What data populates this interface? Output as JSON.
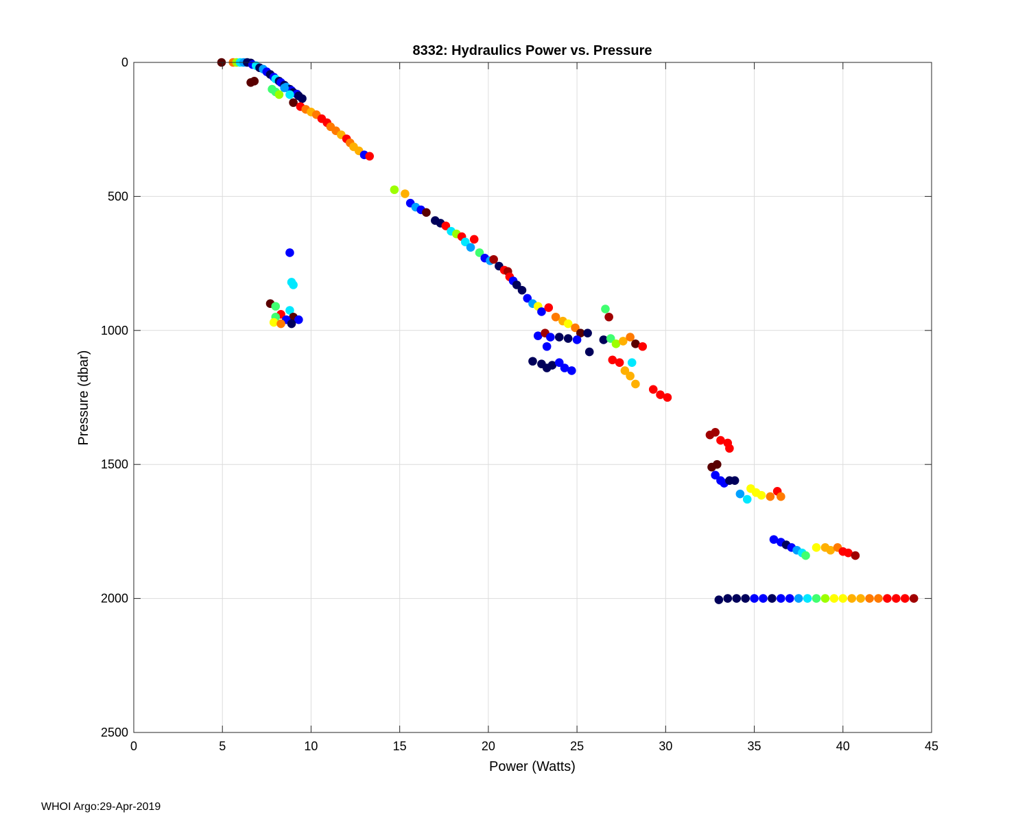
{
  "chart_data": {
    "type": "scatter",
    "title": "8332: Hydraulics Power vs. Pressure",
    "xlabel": "Power (Watts)",
    "ylabel": "Pressure (dbar)",
    "xlim": [
      0,
      45
    ],
    "ylim": [
      0,
      2500
    ],
    "y_reversed": true,
    "grid": true,
    "xticks": [
      0,
      5,
      10,
      15,
      20,
      25,
      30,
      35,
      40,
      45
    ],
    "yticks": [
      0,
      500,
      1000,
      1500,
      2000,
      2500
    ],
    "colormap": [
      "#5a0000",
      "#a00000",
      "#ff0000",
      "#ff7a00",
      "#ffb000",
      "#ffff00",
      "#9cff00",
      "#40ff70",
      "#00e8ff",
      "#00a0ff",
      "#0000ff",
      "#00005a"
    ],
    "points": [
      [
        4.95,
        0,
        0
      ],
      [
        5.6,
        0,
        3
      ],
      [
        5.8,
        0,
        6
      ],
      [
        6.0,
        0,
        8
      ],
      [
        6.2,
        0,
        9
      ],
      [
        6.4,
        0,
        11
      ],
      [
        6.6,
        2,
        11
      ],
      [
        6.7,
        8,
        10
      ],
      [
        6.9,
        12,
        8
      ],
      [
        7.1,
        20,
        11
      ],
      [
        7.3,
        25,
        9
      ],
      [
        7.5,
        35,
        10
      ],
      [
        7.7,
        45,
        11
      ],
      [
        7.9,
        55,
        10
      ],
      [
        8.0,
        62,
        8
      ],
      [
        8.2,
        70,
        11
      ],
      [
        8.3,
        75,
        10
      ],
      [
        8.5,
        85,
        11
      ],
      [
        8.6,
        92,
        9
      ],
      [
        8.8,
        100,
        11
      ],
      [
        8.9,
        105,
        10
      ],
      [
        9.0,
        112,
        11
      ],
      [
        9.2,
        118,
        10
      ],
      [
        9.3,
        125,
        11
      ],
      [
        9.5,
        135,
        11
      ],
      [
        6.6,
        75,
        0
      ],
      [
        6.8,
        70,
        0
      ],
      [
        7.8,
        100,
        7
      ],
      [
        8.0,
        110,
        7
      ],
      [
        8.2,
        120,
        6
      ],
      [
        8.5,
        95,
        9
      ],
      [
        8.8,
        120,
        8
      ],
      [
        9.0,
        150,
        0
      ],
      [
        9.4,
        165,
        2
      ],
      [
        9.7,
        175,
        3
      ],
      [
        10.0,
        185,
        4
      ],
      [
        10.3,
        195,
        3
      ],
      [
        10.6,
        210,
        2
      ],
      [
        10.9,
        225,
        2
      ],
      [
        11.1,
        240,
        3
      ],
      [
        11.4,
        255,
        3
      ],
      [
        11.7,
        270,
        4
      ],
      [
        12.0,
        285,
        2
      ],
      [
        12.2,
        300,
        3
      ],
      [
        12.4,
        315,
        4
      ],
      [
        12.7,
        330,
        4
      ],
      [
        13.0,
        345,
        10
      ],
      [
        13.3,
        350,
        2
      ],
      [
        14.7,
        475,
        6
      ],
      [
        15.3,
        490,
        4
      ],
      [
        15.6,
        525,
        10
      ],
      [
        15.9,
        540,
        9
      ],
      [
        16.2,
        550,
        10
      ],
      [
        16.5,
        560,
        0
      ],
      [
        17.0,
        590,
        11
      ],
      [
        17.3,
        600,
        11
      ],
      [
        17.6,
        610,
        2
      ],
      [
        17.9,
        630,
        8
      ],
      [
        18.2,
        640,
        6
      ],
      [
        18.5,
        650,
        2
      ],
      [
        18.7,
        670,
        8
      ],
      [
        19.0,
        690,
        9
      ],
      [
        19.2,
        660,
        2
      ],
      [
        19.5,
        710,
        7
      ],
      [
        19.8,
        730,
        10
      ],
      [
        20.1,
        740,
        9
      ],
      [
        20.3,
        735,
        1
      ],
      [
        20.6,
        760,
        11
      ],
      [
        20.9,
        775,
        2
      ],
      [
        21.1,
        780,
        1
      ],
      [
        21.2,
        800,
        2
      ],
      [
        21.4,
        815,
        10
      ],
      [
        21.6,
        830,
        11
      ],
      [
        21.9,
        850,
        11
      ],
      [
        22.2,
        880,
        10
      ],
      [
        22.5,
        900,
        9
      ],
      [
        22.8,
        910,
        5
      ],
      [
        23.0,
        930,
        10
      ],
      [
        23.4,
        915,
        2
      ],
      [
        23.8,
        950,
        3
      ],
      [
        24.2,
        965,
        4
      ],
      [
        24.5,
        975,
        5
      ],
      [
        24.9,
        990,
        3
      ],
      [
        25.2,
        1010,
        0
      ],
      [
        22.8,
        1020,
        10
      ],
      [
        23.2,
        1010,
        1
      ],
      [
        23.5,
        1025,
        10
      ],
      [
        23.3,
        1060,
        10
      ],
      [
        24.0,
        1025,
        11
      ],
      [
        24.5,
        1030,
        11
      ],
      [
        25.0,
        1035,
        10
      ],
      [
        25.6,
        1010,
        11
      ],
      [
        25.7,
        1080,
        11
      ],
      [
        26.5,
        1035,
        11
      ],
      [
        26.6,
        920,
        7
      ],
      [
        26.8,
        950,
        1
      ],
      [
        26.9,
        1030,
        7
      ],
      [
        27.2,
        1050,
        6
      ],
      [
        27.6,
        1040,
        4
      ],
      [
        28.0,
        1025,
        3
      ],
      [
        28.3,
        1050,
        0
      ],
      [
        28.7,
        1060,
        2
      ],
      [
        28.1,
        1120,
        8
      ],
      [
        22.5,
        1115,
        11
      ],
      [
        23.0,
        1125,
        11
      ],
      [
        23.3,
        1140,
        11
      ],
      [
        23.6,
        1130,
        11
      ],
      [
        24.0,
        1120,
        10
      ],
      [
        24.3,
        1140,
        10
      ],
      [
        24.7,
        1150,
        10
      ],
      [
        27.0,
        1110,
        2
      ],
      [
        27.4,
        1120,
        2
      ],
      [
        27.7,
        1150,
        4
      ],
      [
        28.0,
        1170,
        4
      ],
      [
        28.3,
        1200,
        4
      ],
      [
        29.3,
        1220,
        2
      ],
      [
        29.7,
        1240,
        2
      ],
      [
        30.1,
        1250,
        2
      ],
      [
        8.8,
        710,
        10
      ],
      [
        8.9,
        820,
        8
      ],
      [
        9.0,
        830,
        8
      ],
      [
        7.7,
        900,
        0
      ],
      [
        8.0,
        910,
        7
      ],
      [
        8.3,
        940,
        2
      ],
      [
        8.8,
        925,
        8
      ],
      [
        8.0,
        950,
        7
      ],
      [
        9.0,
        950,
        0
      ],
      [
        8.6,
        960,
        10
      ],
      [
        9.3,
        960,
        10
      ],
      [
        7.9,
        970,
        5
      ],
      [
        8.3,
        975,
        3
      ],
      [
        8.9,
        975,
        11
      ],
      [
        32.5,
        1390,
        1
      ],
      [
        32.8,
        1380,
        1
      ],
      [
        33.1,
        1410,
        2
      ],
      [
        33.5,
        1420,
        2
      ],
      [
        33.6,
        1440,
        2
      ],
      [
        32.6,
        1510,
        0
      ],
      [
        32.9,
        1500,
        0
      ],
      [
        32.8,
        1540,
        10
      ],
      [
        33.1,
        1560,
        10
      ],
      [
        33.3,
        1570,
        10
      ],
      [
        33.6,
        1560,
        11
      ],
      [
        33.9,
        1560,
        11
      ],
      [
        34.2,
        1610,
        9
      ],
      [
        34.6,
        1630,
        8
      ],
      [
        34.8,
        1590,
        5
      ],
      [
        35.1,
        1605,
        5
      ],
      [
        35.4,
        1615,
        5
      ],
      [
        35.9,
        1620,
        3
      ],
      [
        36.3,
        1600,
        2
      ],
      [
        36.5,
        1620,
        3
      ],
      [
        36.1,
        1780,
        10
      ],
      [
        36.5,
        1790,
        10
      ],
      [
        36.8,
        1800,
        11
      ],
      [
        37.1,
        1810,
        10
      ],
      [
        37.4,
        1820,
        9
      ],
      [
        37.7,
        1830,
        8
      ],
      [
        37.9,
        1840,
        7
      ],
      [
        38.5,
        1810,
        5
      ],
      [
        39.0,
        1810,
        4
      ],
      [
        39.3,
        1820,
        4
      ],
      [
        39.7,
        1810,
        3
      ],
      [
        40.0,
        1825,
        2
      ],
      [
        40.3,
        1830,
        2
      ],
      [
        40.7,
        1840,
        1
      ],
      [
        33.0,
        2005,
        11
      ],
      [
        33.5,
        2000,
        11
      ],
      [
        34.0,
        2000,
        11
      ],
      [
        34.5,
        2000,
        11
      ],
      [
        35.0,
        2000,
        10
      ],
      [
        35.5,
        2000,
        10
      ],
      [
        36.0,
        2000,
        11
      ],
      [
        36.5,
        2000,
        10
      ],
      [
        37.0,
        2000,
        10
      ],
      [
        37.5,
        2000,
        9
      ],
      [
        38.0,
        2000,
        8
      ],
      [
        38.5,
        2000,
        7
      ],
      [
        39.0,
        2000,
        6
      ],
      [
        39.5,
        2000,
        5
      ],
      [
        40.0,
        2000,
        5
      ],
      [
        40.5,
        2000,
        4
      ],
      [
        41.0,
        2000,
        4
      ],
      [
        41.5,
        2000,
        3
      ],
      [
        42.0,
        2000,
        3
      ],
      [
        42.5,
        2000,
        2
      ],
      [
        43.0,
        2000,
        2
      ],
      [
        43.5,
        2000,
        2
      ],
      [
        44.0,
        2000,
        1
      ]
    ]
  },
  "footer": "WHOI Argo:29-Apr-2019"
}
